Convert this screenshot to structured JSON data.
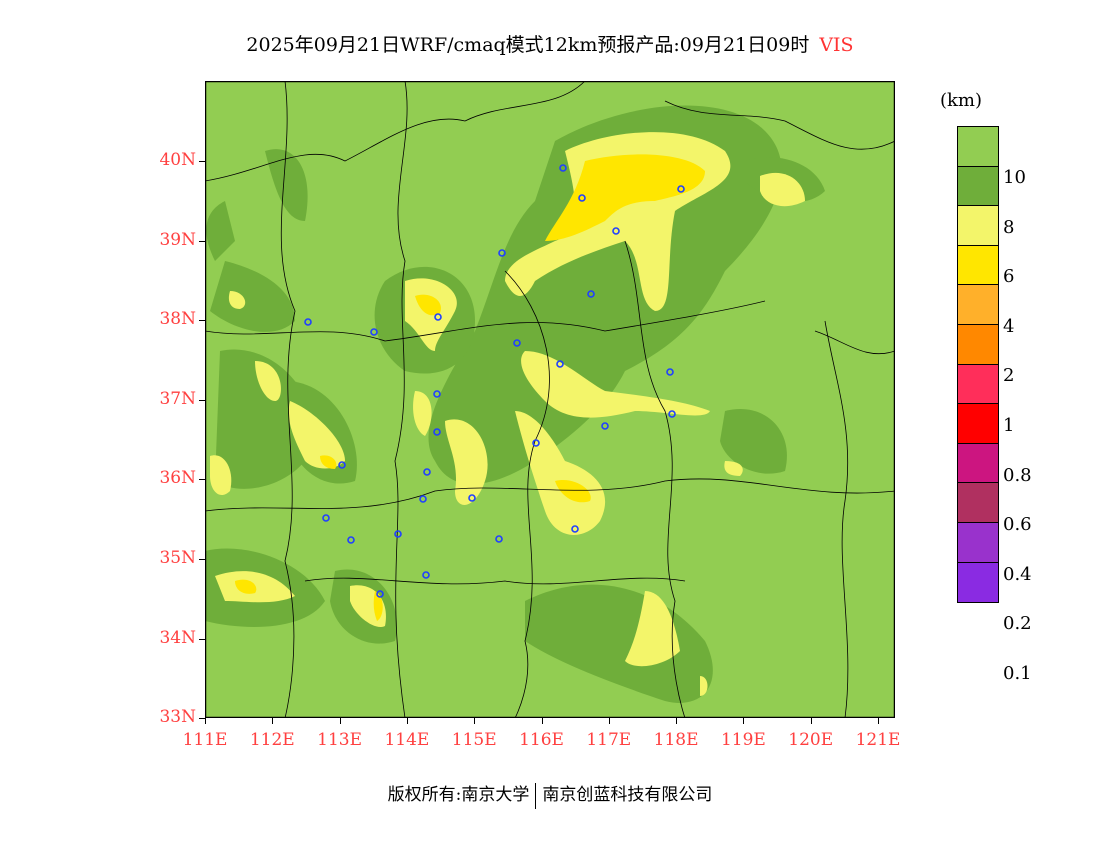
{
  "title": {
    "text": "2025年09月21日WRF/cmaq模式12km预报产品:09月21日09时",
    "variable": "VIS"
  },
  "map": {
    "lat_labels": [
      "40N",
      "39N",
      "38N",
      "37N",
      "36N",
      "35N",
      "34N",
      "33N"
    ],
    "lon_labels": [
      "111E",
      "112E",
      "113E",
      "114E",
      "115E",
      "116E",
      "117E",
      "118E",
      "119E",
      "120E",
      "121E"
    ],
    "background_color": "#92cd52"
  },
  "legend": {
    "unit": "(km)",
    "colors": [
      "#92cd52",
      "#6fae3a",
      "#f3f56a",
      "#ffe600",
      "#ffb02a",
      "#ff8800",
      "#ff2e5a",
      "#ff0000",
      "#cc1580",
      "#b03060",
      "#9932cc",
      "#8a2be2"
    ],
    "labels": [
      "10",
      "8",
      "6",
      "4",
      "2",
      "1",
      "0.8",
      "0.6",
      "0.4",
      "0.2",
      "0.1"
    ]
  },
  "footer": {
    "left": "版权所有:南京大学",
    "right": "南京创蓝科技有限公司"
  }
}
